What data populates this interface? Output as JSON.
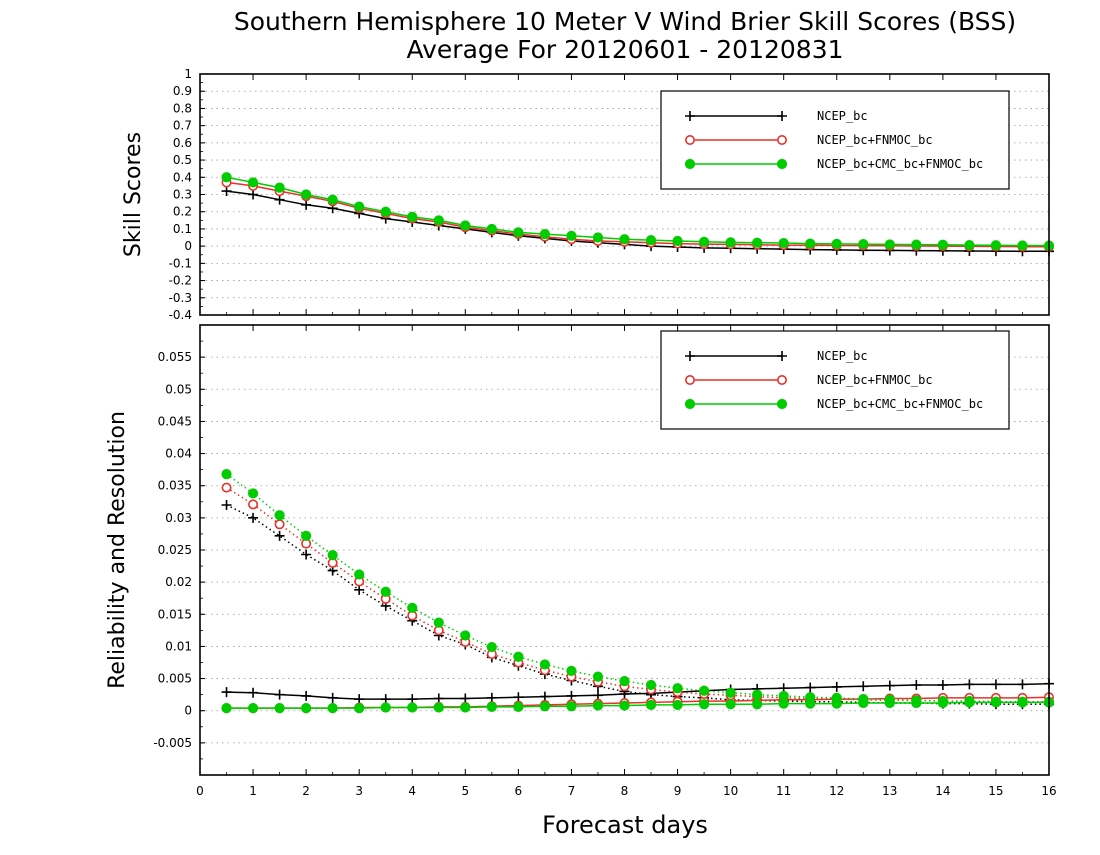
{
  "title_line1": "Southern Hemisphere 10 Meter V Wind Brier Skill Scores (BSS)",
  "title_line2": "Average For 20120601 - 20120831",
  "xlabel": "Forecast days",
  "colors": {
    "NCEP_bc": "#000000",
    "NCEP_bc+FNMOC_bc": "#e8312b",
    "NCEP_bc+CMC_bc+FNMOC_bc": "#00cc00"
  },
  "chart_data": [
    {
      "type": "line",
      "ylabel": "Skill Scores",
      "ylim": [
        -0.4,
        1
      ],
      "xlim": [
        0,
        16
      ],
      "grid": "dotted",
      "legend_position": "top-right",
      "x_ticks": [
        "0",
        "1",
        "2",
        "3",
        "4",
        "5",
        "6",
        "7",
        "8",
        "9",
        "10",
        "11",
        "12",
        "13",
        "14",
        "15",
        "16"
      ],
      "y_ticks": [
        "-0.4",
        "-0.3",
        "-0.2",
        "-0.1",
        "0",
        "0.1",
        "0.2",
        "0.3",
        "0.4",
        "0.5",
        "0.6",
        "0.7",
        "0.8",
        "0.9",
        "1"
      ],
      "x": [
        0.5,
        1,
        1.5,
        2,
        2.5,
        3,
        3.5,
        4,
        4.5,
        5,
        5.5,
        6,
        6.5,
        7,
        7.5,
        8,
        8.5,
        9,
        9.5,
        10,
        10.5,
        11,
        11.5,
        12,
        12.5,
        13,
        13.5,
        14,
        14.5,
        15,
        15.5,
        16
      ],
      "series": [
        {
          "name": "NCEP_bc",
          "marker": "plus",
          "style": "solid",
          "values": [
            0.32,
            0.3,
            0.27,
            0.24,
            0.22,
            0.19,
            0.16,
            0.14,
            0.12,
            0.1,
            0.08,
            0.06,
            0.045,
            0.03,
            0.02,
            0.01,
            0.0,
            -0.005,
            -0.01,
            -0.012,
            -0.015,
            -0.017,
            -0.02,
            -0.022,
            -0.024,
            -0.025,
            -0.026,
            -0.027,
            -0.028,
            -0.029,
            -0.03,
            -0.03
          ]
        },
        {
          "name": "NCEP_bc+FNMOC_bc",
          "marker": "open-circle",
          "style": "solid",
          "values": [
            0.37,
            0.35,
            0.32,
            0.29,
            0.26,
            0.22,
            0.19,
            0.16,
            0.14,
            0.11,
            0.09,
            0.07,
            0.055,
            0.04,
            0.03,
            0.025,
            0.02,
            0.015,
            0.012,
            0.01,
            0.008,
            0.006,
            0.005,
            0.004,
            0.003,
            0.002,
            0.001,
            0.0,
            -0.001,
            -0.002,
            -0.003,
            -0.004
          ]
        },
        {
          "name": "NCEP_bc+CMC_bc+FNMOC_bc",
          "marker": "filled-circle",
          "style": "solid",
          "values": [
            0.4,
            0.37,
            0.34,
            0.3,
            0.27,
            0.23,
            0.2,
            0.17,
            0.15,
            0.12,
            0.1,
            0.08,
            0.07,
            0.06,
            0.05,
            0.04,
            0.035,
            0.03,
            0.025,
            0.022,
            0.02,
            0.018,
            0.015,
            0.013,
            0.012,
            0.01,
            0.009,
            0.008,
            0.006,
            0.005,
            0.004,
            0.003
          ]
        }
      ]
    },
    {
      "type": "line",
      "ylabel": "Reliability and Resolution",
      "ylim": [
        -0.01,
        0.06
      ],
      "xlim": [
        0,
        16
      ],
      "grid": "dotted",
      "legend_position": "top-right",
      "x_ticks": [
        "0",
        "1",
        "2",
        "3",
        "4",
        "5",
        "6",
        "7",
        "8",
        "9",
        "10",
        "11",
        "12",
        "13",
        "14",
        "15",
        "16"
      ],
      "y_ticks": [
        "-0.005",
        "0",
        "0.005",
        "0.01",
        "0.015",
        "0.02",
        "0.025",
        "0.03",
        "0.035",
        "0.04",
        "0.045",
        "0.05",
        "0.055"
      ],
      "x": [
        0.5,
        1,
        1.5,
        2,
        2.5,
        3,
        3.5,
        4,
        4.5,
        5,
        5.5,
        6,
        6.5,
        7,
        7.5,
        8,
        8.5,
        9,
        9.5,
        10,
        10.5,
        11,
        11.5,
        12,
        12.5,
        13,
        13.5,
        14,
        14.5,
        15,
        15.5,
        16
      ],
      "series": [
        {
          "name": "NCEP_bc",
          "measure": "reliability",
          "marker": "plus",
          "style": "solid",
          "values": [
            0.0029,
            0.0028,
            0.0025,
            0.0023,
            0.002,
            0.0018,
            0.0018,
            0.0018,
            0.0019,
            0.0019,
            0.002,
            0.0021,
            0.0022,
            0.0023,
            0.0024,
            0.0026,
            0.0027,
            0.0029,
            0.0031,
            0.0033,
            0.0034,
            0.0035,
            0.0036,
            0.0037,
            0.0038,
            0.0039,
            0.004,
            0.004,
            0.0041,
            0.0041,
            0.0041,
            0.0042
          ]
        },
        {
          "name": "NCEP_bc",
          "measure": "resolution",
          "marker": "plus",
          "style": "dotted",
          "values": [
            0.032,
            0.03,
            0.0272,
            0.0243,
            0.0218,
            0.0188,
            0.0163,
            0.014,
            0.0117,
            0.0103,
            0.0083,
            0.007,
            0.0057,
            0.0047,
            0.0038,
            0.003,
            0.0025,
            0.0022,
            0.002,
            0.0017,
            0.0016,
            0.0015,
            0.0014,
            0.0014,
            0.0013,
            0.0012,
            0.0012,
            0.0011,
            0.0011,
            0.001,
            0.001,
            0.001
          ]
        },
        {
          "name": "NCEP_bc+FNMOC_bc",
          "measure": "reliability",
          "marker": "open-circle",
          "style": "solid",
          "values": [
            0.0004,
            0.0004,
            0.0004,
            0.0004,
            0.0004,
            0.0005,
            0.0005,
            0.0005,
            0.0006,
            0.0006,
            0.0007,
            0.0008,
            0.0009,
            0.001,
            0.0011,
            0.0012,
            0.0013,
            0.0014,
            0.0015,
            0.0015,
            0.0016,
            0.0017,
            0.0017,
            0.0018,
            0.0018,
            0.0019,
            0.0019,
            0.002,
            0.002,
            0.002,
            0.002,
            0.0021
          ]
        },
        {
          "name": "NCEP_bc+FNMOC_bc",
          "measure": "resolution",
          "marker": "open-circle",
          "style": "dotted",
          "values": [
            0.0347,
            0.0321,
            0.029,
            0.026,
            0.023,
            0.0201,
            0.0174,
            0.0148,
            0.0125,
            0.0107,
            0.0088,
            0.0075,
            0.0063,
            0.0053,
            0.0045,
            0.0038,
            0.0033,
            0.0029,
            0.0026,
            0.0024,
            0.0022,
            0.002,
            0.0019,
            0.0018,
            0.0017,
            0.0016,
            0.0016,
            0.0015,
            0.0015,
            0.0014,
            0.0014,
            0.0014
          ]
        },
        {
          "name": "NCEP_bc+CMC_bc+FNMOC_bc",
          "measure": "reliability",
          "marker": "filled-circle",
          "style": "solid",
          "values": [
            0.0004,
            0.0004,
            0.0004,
            0.0004,
            0.0004,
            0.0004,
            0.0005,
            0.0005,
            0.0005,
            0.0005,
            0.0006,
            0.0006,
            0.0007,
            0.0007,
            0.0008,
            0.0008,
            0.0009,
            0.0009,
            0.001,
            0.001,
            0.001,
            0.0011,
            0.0011,
            0.0011,
            0.0012,
            0.0012,
            0.0012,
            0.0012,
            0.0013,
            0.0013,
            0.0013,
            0.0013
          ]
        },
        {
          "name": "NCEP_bc+CMC_bc+FNMOC_bc",
          "measure": "resolution",
          "marker": "filled-circle",
          "style": "dotted",
          "values": [
            0.0368,
            0.0338,
            0.0304,
            0.0272,
            0.0242,
            0.0212,
            0.0185,
            0.016,
            0.0137,
            0.0117,
            0.0099,
            0.0084,
            0.0072,
            0.0062,
            0.0053,
            0.0046,
            0.004,
            0.0035,
            0.0031,
            0.0028,
            0.0025,
            0.0023,
            0.0021,
            0.002,
            0.0018,
            0.0017,
            0.0016,
            0.0015,
            0.0015,
            0.0014,
            0.0014,
            0.0013
          ]
        }
      ]
    }
  ]
}
